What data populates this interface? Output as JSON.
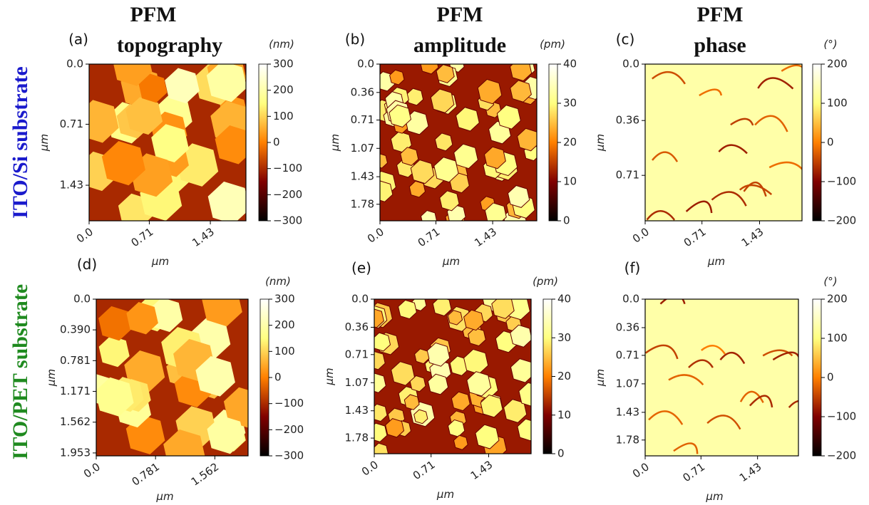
{
  "column_titles": [
    {
      "line1": "PFM",
      "line2": "topography"
    },
    {
      "line1": "PFM",
      "line2": "amplitude"
    },
    {
      "line1": "PFM",
      "line2": "phase"
    }
  ],
  "row_labels": [
    "ITO/Si substrate",
    "ITO/PET substrate"
  ],
  "panels": [
    {
      "label": "(a)",
      "unit": "(nm)",
      "x_label": "μm",
      "y_label": "μm",
      "xlim": [
        0,
        1.85
      ],
      "ylim": [
        0,
        1.85
      ],
      "xticks": [
        {
          "value": 0,
          "label": "0.0"
        },
        0.71,
        1.43
      ],
      "yticks": [
        {
          "value": 0,
          "label": "0.0"
        },
        0.71,
        1.43
      ],
      "clim": [
        -300,
        300
      ],
      "cticks": [
        {
          "value": -300,
          "label": "−300"
        },
        {
          "value": -200,
          "label": "−200"
        },
        {
          "value": -100,
          "label": "−100"
        },
        0,
        100,
        200,
        300
      ]
    },
    {
      "label": "(b)",
      "unit": "(pm)",
      "x_label": "μm",
      "y_label": "μm",
      "xlim": [
        0,
        1.99
      ],
      "ylim": [
        0,
        1.99
      ],
      "xticks": [
        {
          "value": 0,
          "label": "0.0"
        },
        0.71,
        1.43
      ],
      "yticks": [
        {
          "value": 0,
          "label": "0.0"
        },
        0.36,
        0.71,
        1.07,
        1.43,
        1.78
      ],
      "clim": [
        0,
        40
      ],
      "cticks": [
        0,
        10,
        20,
        30,
        40
      ]
    },
    {
      "label": "(c)",
      "unit": "(°)",
      "x_label": "μm",
      "y_label": "μm",
      "xlim": [
        0,
        1.96
      ],
      "ylim": [
        0,
        1.0
      ],
      "xticks": [
        {
          "value": 0,
          "label": "0.0"
        },
        0.71,
        1.43
      ],
      "yticks": [
        {
          "value": 0,
          "label": "0.0"
        },
        0.36,
        0.71
      ],
      "clim": [
        -200,
        200
      ],
      "cticks": [
        {
          "value": -200,
          "label": "−200"
        },
        {
          "value": -100,
          "label": "−100"
        },
        0,
        100,
        200
      ]
    },
    {
      "label": "(d)",
      "unit": "(nm)",
      "x_label": "μm",
      "y_label": "μm",
      "xlim": [
        0,
        2.0
      ],
      "ylim": [
        0,
        1.99
      ],
      "xticks": [
        {
          "value": 0,
          "label": "0.0"
        },
        0.781,
        1.562
      ],
      "yticks": [
        {
          "value": 0,
          "label": "0.0"
        },
        {
          "value": 0.39,
          "label": "0.390"
        },
        0.781,
        1.171,
        1.562,
        1.953
      ],
      "clim": [
        -300,
        300
      ],
      "cticks": [
        {
          "value": -300,
          "label": "−300"
        },
        {
          "value": -200,
          "label": "−200"
        },
        {
          "value": -100,
          "label": "−100"
        },
        0,
        100,
        200,
        300
      ]
    },
    {
      "label": "(e)",
      "unit": "(pm)",
      "x_label": "μm",
      "y_label": "μm",
      "xlim": [
        0,
        1.96
      ],
      "ylim": [
        0,
        1.98
      ],
      "xticks": [
        {
          "value": 0,
          "label": "0.0"
        },
        0.71,
        1.43
      ],
      "yticks": [
        {
          "value": 0,
          "label": "0.0"
        },
        0.36,
        0.71,
        1.07,
        1.43,
        1.78
      ],
      "clim": [
        0,
        40
      ],
      "cticks": [
        0,
        10,
        20,
        30,
        40
      ]
    },
    {
      "label": "(f)",
      "unit": "(°)",
      "x_label": "μm",
      "y_label": "μm",
      "xlim": [
        0,
        1.95
      ],
      "ylim": [
        0,
        1.98
      ],
      "xticks": [
        {
          "value": 0,
          "label": "0.0"
        },
        0.71,
        1.43
      ],
      "yticks": [
        {
          "value": 0,
          "label": "0.0"
        },
        0.36,
        0.71,
        1.07,
        1.43,
        1.78
      ],
      "clim": [
        -200,
        200
      ],
      "cticks": [
        {
          "value": -200,
          "label": "−200"
        },
        {
          "value": -100,
          "label": "−100"
        },
        0,
        100,
        200
      ]
    }
  ]
}
